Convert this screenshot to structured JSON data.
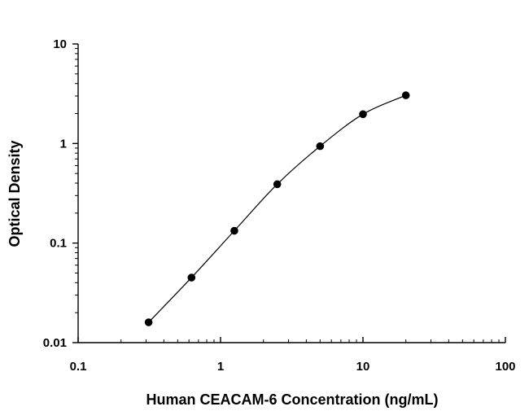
{
  "chart_data": {
    "type": "scatter",
    "title": "",
    "xlabel": "Human CEACAM-6 Concentration (ng/mL)",
    "ylabel": "Optical Density",
    "x_scale": "log",
    "y_scale": "log",
    "xlim": [
      0.1,
      100
    ],
    "ylim": [
      0.01,
      10
    ],
    "x_ticks": [
      "0.1",
      "1",
      "10",
      "100"
    ],
    "y_ticks": [
      "0.01",
      "0.1",
      "1",
      "10"
    ],
    "grid": false,
    "legend": "none",
    "series": [
      {
        "x": [
          0.3125,
          0.625,
          1.25,
          2.5,
          5,
          10,
          20
        ],
        "y": [
          0.016,
          0.045,
          0.133,
          0.39,
          0.94,
          1.97,
          3.05
        ],
        "marker": "filled-circle",
        "fit_line": true
      }
    ],
    "colors": {
      "points": "#000000",
      "line": "#000000",
      "axes": "#000000"
    }
  }
}
